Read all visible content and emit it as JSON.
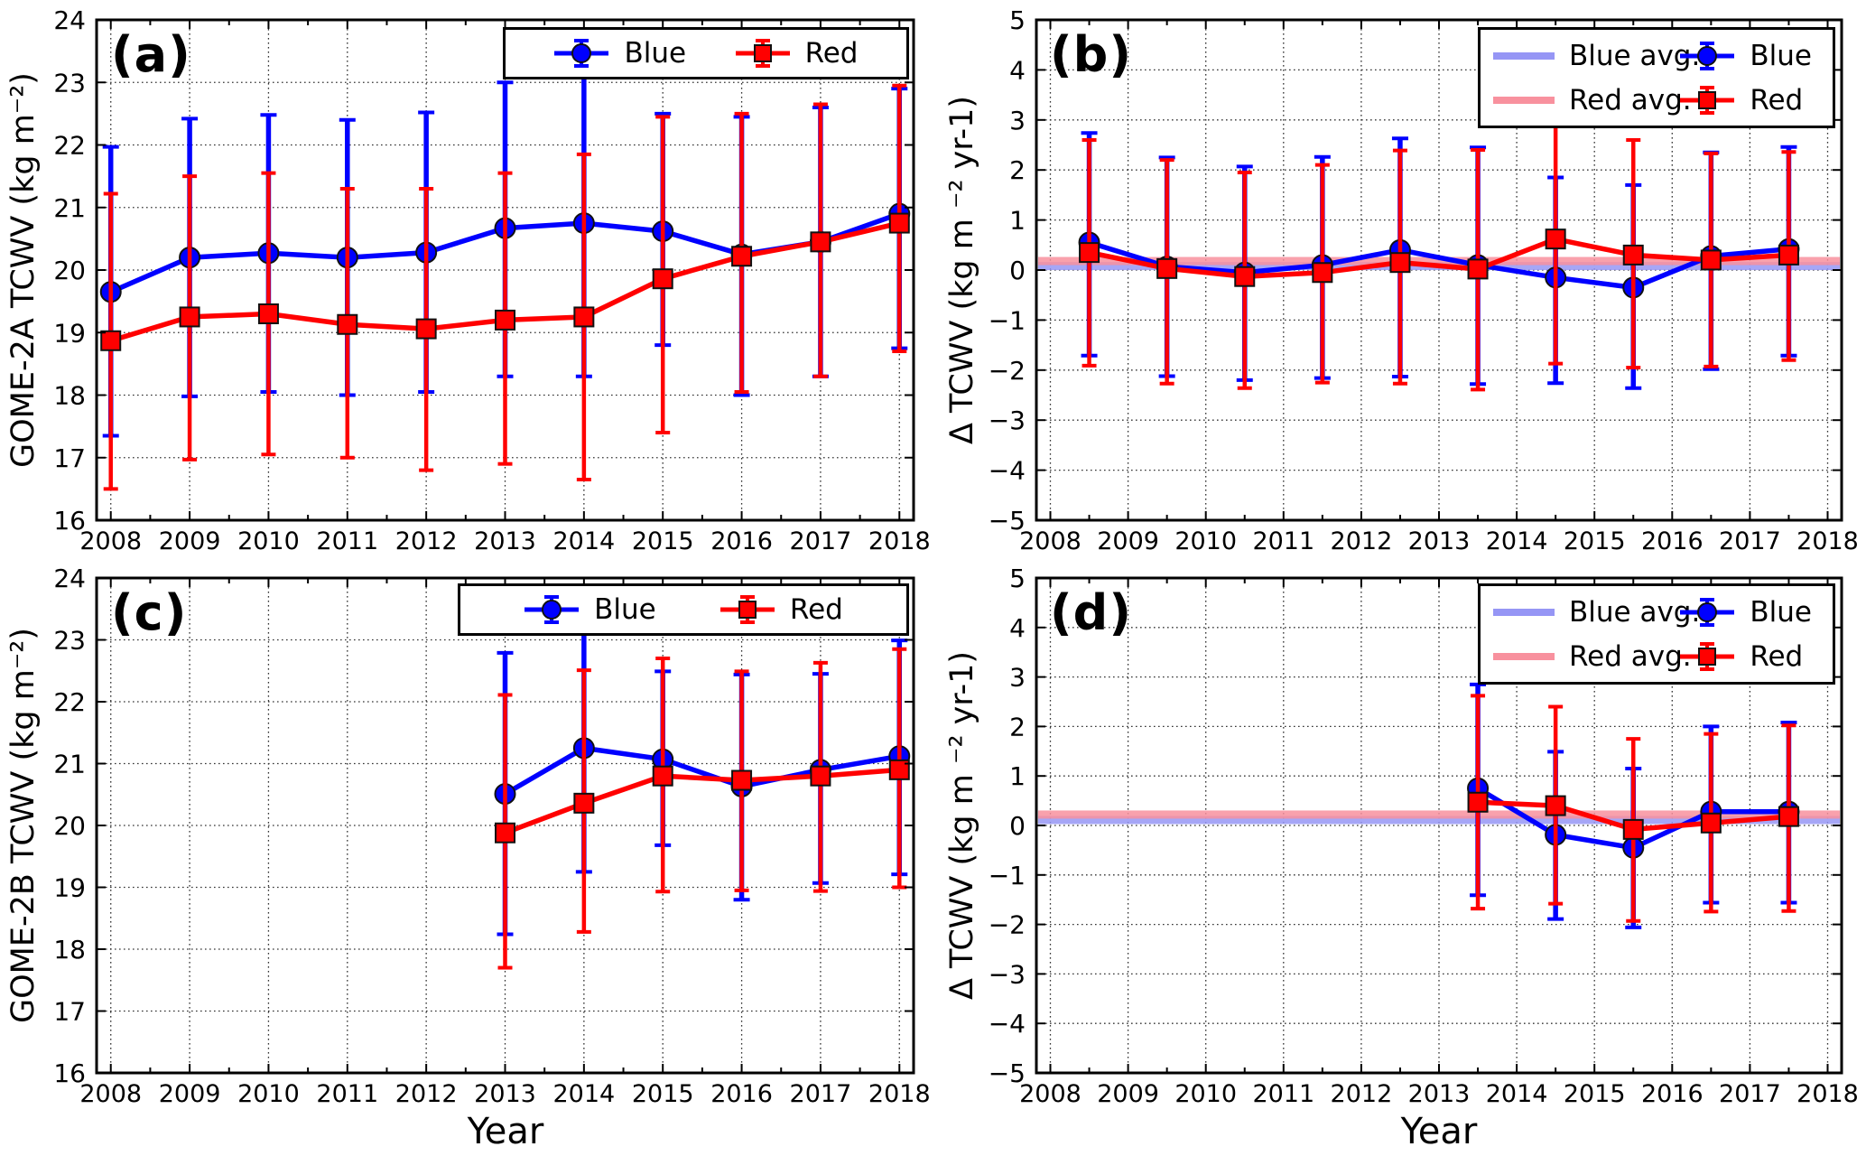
{
  "colors": {
    "blue": "#0000ff",
    "red": "#ff0000",
    "blue_avg": "#9696f5",
    "red_avg": "#f8919e",
    "marker_edge": "#111111",
    "grid": "#333333",
    "axis": "#000000"
  },
  "chart_data": [
    {
      "id": "a",
      "type": "line",
      "label": "(a)",
      "ylabel": "GOME-2A TCWV (kg m⁻²)",
      "xlabel": "",
      "xlim": [
        2007.82,
        2018.18
      ],
      "ylim": [
        16,
        24
      ],
      "xticks": [
        2008,
        2009,
        2010,
        2011,
        2012,
        2013,
        2014,
        2015,
        2016,
        2017,
        2018
      ],
      "xtick_labels": [
        "2008",
        "2009",
        "2010",
        "2011",
        "2012",
        "2013",
        "2014",
        "2015",
        "2016",
        "2017",
        "2018"
      ],
      "yticks": [
        16,
        17,
        18,
        19,
        20,
        21,
        22,
        23,
        24
      ],
      "ytick_labels": [
        "16",
        "17",
        "18",
        "19",
        "20",
        "21",
        "22",
        "23",
        "24"
      ],
      "grid": true,
      "legend_position": "top-right",
      "legend_items": [
        "Blue",
        "Red"
      ],
      "x": [
        2008,
        2009,
        2010,
        2011,
        2012,
        2013,
        2014,
        2015,
        2016,
        2017,
        2018
      ],
      "series": [
        {
          "name": "Blue",
          "color_key": "blue",
          "marker": "circle",
          "values": [
            19.65,
            20.2,
            20.27,
            20.2,
            20.28,
            20.67,
            20.75,
            20.62,
            20.25,
            20.45,
            20.9
          ],
          "err_lo": [
            17.35,
            17.98,
            18.05,
            18.0,
            18.05,
            18.3,
            18.3,
            18.8,
            18.0,
            18.3,
            18.75
          ],
          "err_hi": [
            21.97,
            22.42,
            22.48,
            22.4,
            22.52,
            23.0,
            23.2,
            22.5,
            22.45,
            22.6,
            22.9
          ]
        },
        {
          "name": "Red",
          "color_key": "red",
          "marker": "square",
          "values": [
            18.87,
            19.25,
            19.3,
            19.13,
            19.06,
            19.2,
            19.25,
            19.86,
            20.22,
            20.45,
            20.75
          ],
          "err_lo": [
            16.5,
            16.97,
            17.05,
            17.0,
            16.8,
            16.9,
            16.65,
            17.4,
            18.05,
            18.3,
            18.7
          ],
          "err_hi": [
            21.22,
            21.5,
            21.55,
            21.3,
            21.3,
            21.55,
            21.85,
            22.45,
            22.5,
            22.65,
            22.95
          ]
        }
      ]
    },
    {
      "id": "b",
      "type": "line",
      "label": "(b)",
      "ylabel": "Δ TCWV (kg m ⁻² yr-1)",
      "xlabel": "",
      "xlim": [
        2007.82,
        2018.18
      ],
      "ylim": [
        -5,
        5
      ],
      "xticks": [
        2008,
        2009,
        2010,
        2011,
        2012,
        2013,
        2014,
        2015,
        2016,
        2017,
        2018
      ],
      "xtick_labels": [
        "2008",
        "2009",
        "2010",
        "2011",
        "2012",
        "2013",
        "2014",
        "2015",
        "2016",
        "2017",
        "2018"
      ],
      "yticks": [
        -5,
        -4,
        -3,
        -2,
        -1,
        0,
        1,
        2,
        3,
        4,
        5
      ],
      "ytick_labels": [
        "−5",
        "−4",
        "−3",
        "−2",
        "−1",
        "0",
        "1",
        "2",
        "3",
        "4",
        "5"
      ],
      "grid": true,
      "legend_position": "top-right",
      "legend_items": [
        "Blue avg.",
        "Red avg.",
        "Blue",
        "Red"
      ],
      "avg_lines": [
        {
          "name": "Blue avg.",
          "value": 0.08,
          "color_key": "blue_avg"
        },
        {
          "name": "Red avg.",
          "value": 0.18,
          "color_key": "red_avg"
        }
      ],
      "x": [
        2008.5,
        2009.5,
        2010.5,
        2011.5,
        2012.5,
        2013.5,
        2014.5,
        2015.5,
        2016.5,
        2017.5
      ],
      "series": [
        {
          "name": "Blue",
          "color_key": "blue",
          "marker": "circle",
          "values": [
            0.55,
            0.07,
            -0.05,
            0.1,
            0.4,
            0.1,
            -0.15,
            -0.35,
            0.28,
            0.42
          ],
          "err_lo": [
            -1.71,
            -2.12,
            -2.2,
            -2.16,
            -2.13,
            -2.28,
            -2.26,
            -2.36,
            -1.98,
            -1.71
          ],
          "err_hi": [
            2.74,
            2.25,
            2.07,
            2.26,
            2.63,
            2.45,
            1.85,
            1.7,
            2.35,
            2.46
          ]
        },
        {
          "name": "Red",
          "color_key": "red",
          "marker": "square",
          "values": [
            0.35,
            0.03,
            -0.13,
            -0.05,
            0.15,
            0.02,
            0.62,
            0.3,
            0.2,
            0.3
          ],
          "err_lo": [
            -1.91,
            -2.27,
            -2.36,
            -2.25,
            -2.27,
            -2.39,
            -1.87,
            -1.95,
            -1.93,
            -1.8
          ],
          "err_hi": [
            2.6,
            2.2,
            1.95,
            2.1,
            2.39,
            2.4,
            3.1,
            2.6,
            2.33,
            2.36
          ]
        }
      ]
    },
    {
      "id": "c",
      "type": "line",
      "label": "(c)",
      "ylabel": "GOME-2B TCWV (kg m⁻²)",
      "xlabel": "Year",
      "xlim": [
        2007.82,
        2018.18
      ],
      "ylim": [
        16,
        24
      ],
      "xticks": [
        2008,
        2009,
        2010,
        2011,
        2012,
        2013,
        2014,
        2015,
        2016,
        2017,
        2018
      ],
      "xtick_labels": [
        "2008",
        "2009",
        "2010",
        "2011",
        "2012",
        "2013",
        "2014",
        "2015",
        "2016",
        "2017",
        "2018"
      ],
      "yticks": [
        16,
        17,
        18,
        19,
        20,
        21,
        22,
        23,
        24
      ],
      "ytick_labels": [
        "16",
        "17",
        "18",
        "19",
        "20",
        "21",
        "22",
        "23",
        "24"
      ],
      "grid": true,
      "legend_position": "top-right",
      "legend_items": [
        "Blue",
        "Red"
      ],
      "x": [
        2013,
        2014,
        2015,
        2016,
        2017,
        2018
      ],
      "series": [
        {
          "name": "Blue",
          "color_key": "blue",
          "marker": "circle",
          "values": [
            20.51,
            21.25,
            21.07,
            20.63,
            20.9,
            21.12
          ],
          "err_lo": [
            18.24,
            19.25,
            19.68,
            18.8,
            19.07,
            19.21
          ],
          "err_hi": [
            22.79,
            23.28,
            22.49,
            22.44,
            22.45,
            22.99
          ]
        },
        {
          "name": "Red",
          "color_key": "red",
          "marker": "square",
          "values": [
            19.88,
            20.36,
            20.8,
            20.73,
            20.8,
            20.9
          ],
          "err_lo": [
            17.7,
            18.28,
            18.93,
            18.95,
            18.94,
            19.0
          ],
          "err_hi": [
            22.11,
            22.51,
            22.7,
            22.49,
            22.63,
            22.85
          ]
        }
      ]
    },
    {
      "id": "d",
      "type": "line",
      "label": "(d)",
      "ylabel": "Δ TCWV (kg m ⁻² yr-1)",
      "xlabel": "Year",
      "xlim": [
        2007.82,
        2018.18
      ],
      "ylim": [
        -5,
        5
      ],
      "xticks": [
        2008,
        2009,
        2010,
        2011,
        2012,
        2013,
        2014,
        2015,
        2016,
        2017,
        2018
      ],
      "xtick_labels": [
        "2008",
        "2009",
        "2010",
        "2011",
        "2012",
        "2013",
        "2014",
        "2015",
        "2016",
        "2017",
        "2018"
      ],
      "yticks": [
        -5,
        -4,
        -3,
        -2,
        -1,
        0,
        1,
        2,
        3,
        4,
        5
      ],
      "ytick_labels": [
        "−5",
        "−4",
        "−3",
        "−2",
        "−1",
        "0",
        "1",
        "2",
        "3",
        "4",
        "5"
      ],
      "grid": true,
      "legend_position": "top-right",
      "legend_items": [
        "Blue avg.",
        "Red avg.",
        "Blue",
        "Red"
      ],
      "avg_lines": [
        {
          "name": "Blue avg.",
          "value": 0.11,
          "color_key": "blue_avg"
        },
        {
          "name": "Red avg.",
          "value": 0.22,
          "color_key": "red_avg"
        }
      ],
      "x": [
        2013.5,
        2014.5,
        2015.5,
        2016.5,
        2017.5
      ],
      "series": [
        {
          "name": "Blue",
          "color_key": "blue",
          "marker": "circle",
          "values": [
            0.75,
            -0.19,
            -0.45,
            0.28,
            0.28
          ],
          "err_lo": [
            -1.41,
            -1.89,
            -2.06,
            -1.56,
            -1.56
          ],
          "err_hi": [
            2.85,
            1.49,
            1.15,
            2.0,
            2.08
          ]
        },
        {
          "name": "Red",
          "color_key": "red",
          "marker": "square",
          "values": [
            0.47,
            0.4,
            -0.08,
            0.05,
            0.18
          ],
          "err_lo": [
            -1.68,
            -1.58,
            -1.93,
            -1.74,
            -1.73
          ],
          "err_hi": [
            2.62,
            2.4,
            1.75,
            1.85,
            2.02
          ]
        }
      ]
    }
  ]
}
